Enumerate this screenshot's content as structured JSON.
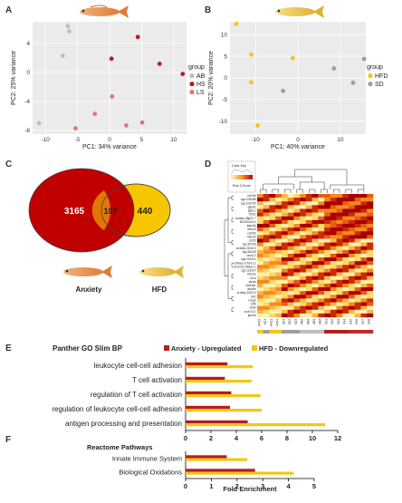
{
  "panels": {
    "A": {
      "label": "A",
      "xlabel": "PC1: 34% variance",
      "ylabel": "PC2: 25% variance",
      "xticks": [
        "-10",
        "-5",
        "0",
        "5",
        "10"
      ],
      "yticks": [
        "4",
        "0",
        "-4",
        "-8"
      ],
      "legend_title": "group",
      "groups": [
        {
          "name": "AB",
          "color": "#bdbdbd"
        },
        {
          "name": "HS",
          "color": "#b71c1c"
        },
        {
          "name": "LS",
          "color": "#e57373"
        }
      ],
      "chart_data": {
        "type": "scatter",
        "xlabel": "PC1: 34% variance",
        "ylabel": "PC2: 25% variance",
        "xlim": [
          -12,
          12
        ],
        "ylim": [
          -8.5,
          7
        ],
        "series": [
          {
            "name": "AB",
            "color": "#bdbdbd",
            "points": [
              [
                -6.5,
                6.4
              ],
              [
                -6.3,
                5.7
              ],
              [
                -7.3,
                2.3
              ],
              [
                -11,
                -7
              ]
            ]
          },
          {
            "name": "HS",
            "color": "#b71c1c",
            "points": [
              [
                4.4,
                4.9
              ],
              [
                0.3,
                1.9
              ],
              [
                7.8,
                1.2
              ],
              [
                11.4,
                -0.2
              ]
            ]
          },
          {
            "name": "LS",
            "color": "#e57373",
            "points": [
              [
                0.4,
                -3.3
              ],
              [
                -2.3,
                -5.7
              ],
              [
                -5.3,
                -7.7
              ],
              [
                2.6,
                -7.3
              ],
              [
                5.1,
                -6.9
              ]
            ]
          }
        ]
      }
    },
    "B": {
      "label": "B",
      "xlabel": "PC1: 40% variance",
      "ylabel": "PC2: 20% variance",
      "xticks": [
        "-10",
        "0",
        "10"
      ],
      "yticks": [
        "10",
        "5",
        "0",
        "-5",
        "-10"
      ],
      "legend_title": "group",
      "groups": [
        {
          "name": "HFD",
          "color": "#f5c518"
        },
        {
          "name": "SD",
          "color": "#9e9e9e"
        }
      ],
      "chart_data": {
        "type": "scatter",
        "xlabel": "PC1: 40% variance",
        "ylabel": "PC2: 20% variance",
        "xlim": [
          -16,
          16
        ],
        "ylim": [
          -13,
          13
        ],
        "series": [
          {
            "name": "HFD",
            "color": "#f5c518",
            "points": [
              [
                -14.5,
                12.5
              ],
              [
                -11,
                5.4
              ],
              [
                -11,
                -1
              ],
              [
                -1.2,
                4.6
              ],
              [
                -9.5,
                -11
              ]
            ]
          },
          {
            "name": "SD",
            "color": "#9e9e9e",
            "points": [
              [
                -3.5,
                -3
              ],
              [
                8.5,
                2.2
              ],
              [
                15.6,
                4.4
              ],
              [
                13,
                -1.1
              ]
            ]
          }
        ]
      }
    },
    "C": {
      "label": "C",
      "venn": {
        "left_only": "3165",
        "overlap": "107",
        "right_only": "440",
        "left_name": "Anxiety",
        "right_name": "HFD",
        "left_color": "#c00000",
        "right_color": "#f7c600"
      }
    },
    "D": {
      "label": "D",
      "key_title": "Color Key",
      "key_label": "Row Z-Score",
      "genes": [
        "ccl19a",
        "zgc:100068",
        "zgc:103700",
        "gdpd1",
        "gsta.1",
        "btr22",
        "si:dkey-48p21.7",
        "BX324144.4",
        "tppp3a",
        "mhc2b",
        "ccl20b",
        "mhc2b",
        "ccl2b",
        "zgc:64106",
        "si:dkey-22i16.9",
        "zgc:64105",
        "cxcr3.2",
        "zgc:113314",
        "si:dkey-21h14.12",
        "si:ch211-46k22.1",
        "zgc:113314",
        "mhc2a",
        "nr1a",
        "aicda",
        "slc44a1",
        "alox5b",
        "si:dkey-10h3.3",
        "hk2",
        "rhcgb",
        "krt5",
        "cmbl",
        "si:ch73-1",
        "jam2a"
      ],
      "samples": [
        "HFD3",
        "SD1",
        "HFD1",
        "HFD4",
        "SD4",
        "SD2",
        "SD3",
        "AB2",
        "AB3",
        "AB1",
        "AB4",
        "SS1",
        "SS2",
        "SS3",
        "SS4",
        "SS5",
        "SS6",
        "SS7",
        "SS8"
      ],
      "sample_groups": [
        "HFD",
        "SD",
        "HFD",
        "HFD",
        "SD",
        "SD",
        "SD",
        "AB",
        "AB",
        "AB",
        "AB",
        "HS",
        "HS",
        "HS",
        "HS",
        "LS",
        "LS",
        "LS",
        "LS"
      ],
      "group_colors": {
        "HFD": "#f5c518",
        "SD": "#9e9e9e",
        "AB": "#bdbdbd",
        "HS": "#b71c1c",
        "LS": "#c62828"
      }
    },
    "E": {
      "label": "E",
      "title": "Panther GO Slim BP",
      "chart_data": {
        "type": "bar",
        "categories": [
          "leukocyte cell-cell adhesion",
          "T cell activation",
          "regulation of T cell activation",
          "regulation of leukocyte cell-cell adhesion",
          "antigen processing and presentation"
        ],
        "series": [
          {
            "name": "Anxiety - Upregulated",
            "color": "#b71c1c",
            "values": [
              3.3,
              3.1,
              3.6,
              3.5,
              4.9
            ]
          },
          {
            "name": "HFD - Downregulated",
            "color": "#f5c518",
            "values": [
              5.3,
              5.2,
              5.9,
              6.0,
              11.0
            ]
          }
        ],
        "xlim": [
          0,
          12
        ],
        "xticks": [
          "0",
          "2",
          "4",
          "6",
          "8",
          "10",
          "12"
        ]
      }
    },
    "F": {
      "label": "F",
      "title": "Reactome Pathways",
      "xlabel": "Fold Enrichment",
      "chart_data": {
        "type": "bar",
        "categories": [
          "Innate Immune System",
          "Biological Oxidations"
        ],
        "series": [
          {
            "name": "Anxiety - Upregulated",
            "color": "#b71c1c",
            "values": [
              1.6,
              2.7
            ]
          },
          {
            "name": "HFD - Downregulated",
            "color": "#f5c518",
            "values": [
              2.4,
              4.2
            ]
          }
        ],
        "xlim": [
          0,
          5
        ],
        "xticks": [
          "0",
          "1",
          "2",
          "3",
          "4",
          "5"
        ]
      }
    }
  }
}
